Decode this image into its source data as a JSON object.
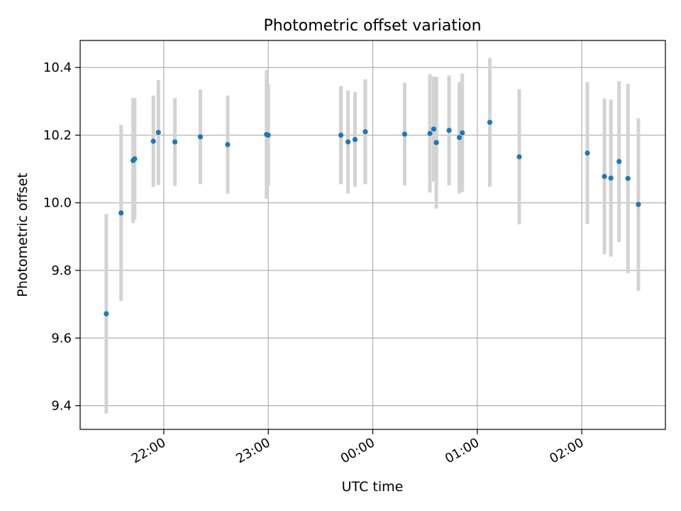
{
  "chart_data": {
    "type": "scatter",
    "title": "Photometric offset variation",
    "xlabel": "UTC time",
    "ylabel": "Photometric offset",
    "x_unit": "minutes relative to 00:00 UTC",
    "xlim": [
      -168,
      168
    ],
    "ylim": [
      9.33,
      10.48
    ],
    "xticks": [
      {
        "value": -120,
        "label": "22:00"
      },
      {
        "value": -60,
        "label": "23:00"
      },
      {
        "value": 0,
        "label": "00:00"
      },
      {
        "value": 60,
        "label": "01:00"
      },
      {
        "value": 120,
        "label": "02:00"
      }
    ],
    "yticks": [
      {
        "value": 9.4,
        "label": "9.4"
      },
      {
        "value": 9.6,
        "label": "9.6"
      },
      {
        "value": 9.8,
        "label": "9.8"
      },
      {
        "value": 10.0,
        "label": "10.0"
      },
      {
        "value": 10.2,
        "label": "10.2"
      },
      {
        "value": 10.4,
        "label": "10.4"
      }
    ],
    "grid": true,
    "colors": {
      "points": "#1f77b4",
      "errorbars": "#d3d3d3",
      "grid": "#b0b0b0"
    },
    "points": [
      {
        "x": -153.0,
        "y": 9.672,
        "err": 0.295
      },
      {
        "x": -144.5,
        "y": 9.97,
        "err": 0.26
      },
      {
        "x": -137.6,
        "y": 10.125,
        "err": 0.185
      },
      {
        "x": -136.7,
        "y": 10.13,
        "err": 0.18
      },
      {
        "x": -126.0,
        "y": 10.182,
        "err": 0.135
      },
      {
        "x": -123.1,
        "y": 10.208,
        "err": 0.155
      },
      {
        "x": -113.6,
        "y": 10.18,
        "err": 0.13
      },
      {
        "x": -99.0,
        "y": 10.195,
        "err": 0.14
      },
      {
        "x": -83.3,
        "y": 10.172,
        "err": 0.145
      },
      {
        "x": -61.0,
        "y": 10.202,
        "err": 0.19
      },
      {
        "x": -60.0,
        "y": 10.2,
        "err": 0.15
      },
      {
        "x": -18.3,
        "y": 10.2,
        "err": 0.145
      },
      {
        "x": -14.2,
        "y": 10.18,
        "err": 0.152
      },
      {
        "x": -10.2,
        "y": 10.187,
        "err": 0.14
      },
      {
        "x": -4.3,
        "y": 10.21,
        "err": 0.155
      },
      {
        "x": 18.3,
        "y": 10.203,
        "err": 0.152
      },
      {
        "x": 32.8,
        "y": 10.205,
        "err": 0.175
      },
      {
        "x": 35.0,
        "y": 10.218,
        "err": 0.155
      },
      {
        "x": 36.5,
        "y": 10.178,
        "err": 0.195
      },
      {
        "x": 43.8,
        "y": 10.214,
        "err": 0.162
      },
      {
        "x": 49.7,
        "y": 10.193,
        "err": 0.165
      },
      {
        "x": 51.4,
        "y": 10.207,
        "err": 0.175
      },
      {
        "x": 67.2,
        "y": 10.238,
        "err": 0.19
      },
      {
        "x": 84.1,
        "y": 10.136,
        "err": 0.2
      },
      {
        "x": 123.2,
        "y": 10.147,
        "err": 0.21
      },
      {
        "x": 133.0,
        "y": 10.078,
        "err": 0.23
      },
      {
        "x": 136.7,
        "y": 10.073,
        "err": 0.232
      },
      {
        "x": 141.4,
        "y": 10.122,
        "err": 0.238
      },
      {
        "x": 146.5,
        "y": 10.072,
        "err": 0.28
      },
      {
        "x": 152.5,
        "y": 9.995,
        "err": 0.255
      }
    ]
  }
}
